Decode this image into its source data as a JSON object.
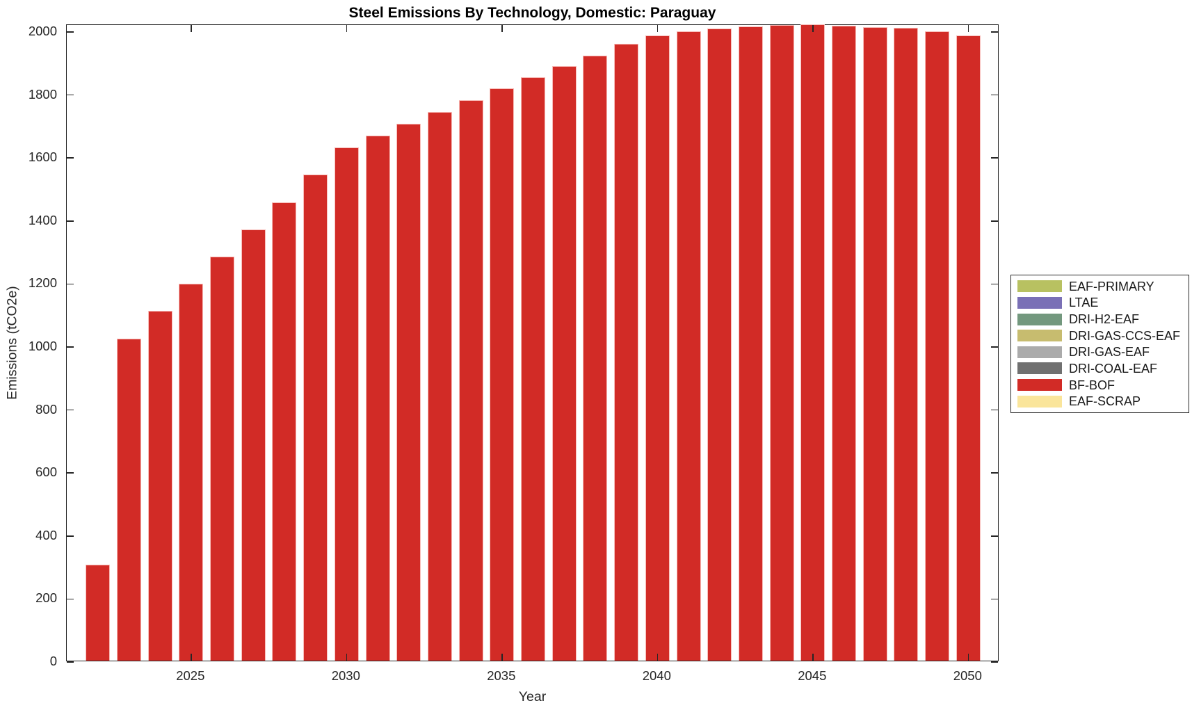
{
  "chart_data": {
    "type": "bar",
    "stacked": true,
    "title": "Steel Emissions By Technology, Domestic: Paraguay",
    "xlabel": "Year",
    "ylabel": "Emissions (tCO2e)",
    "grid": false,
    "xlim": [
      2021,
      2051
    ],
    "ylim": [
      0,
      2022
    ],
    "x_ticks": [
      2025,
      2030,
      2035,
      2040,
      2045,
      2050
    ],
    "y_ticks": [
      0,
      200,
      400,
      600,
      800,
      1000,
      1200,
      1400,
      1600,
      1800,
      2000
    ],
    "categories": [
      2022,
      2023,
      2024,
      2025,
      2026,
      2027,
      2028,
      2029,
      2030,
      2031,
      2032,
      2033,
      2034,
      2035,
      2036,
      2037,
      2038,
      2039,
      2040,
      2041,
      2042,
      2043,
      2044,
      2045,
      2046,
      2047,
      2048,
      2049,
      2050
    ],
    "series": [
      {
        "name": "BF-BOF",
        "color": "#D22B26",
        "values": [
          305,
          1022,
          1111,
          1197,
          1283,
          1369,
          1455,
          1544,
          1630,
          1667,
          1705,
          1742,
          1780,
          1817,
          1853,
          1888,
          1921,
          1957,
          1985,
          1998,
          2006,
          2013,
          2018,
          2019,
          2016,
          2012,
          2008,
          1998,
          1985
        ]
      }
    ],
    "legend": {
      "position": "right-outside",
      "entries": [
        {
          "label": "EAF-PRIMARY",
          "color": "#B8C161"
        },
        {
          "label": "LTAE",
          "color": "#7A70B6"
        },
        {
          "label": "DRI-H2-EAF",
          "color": "#73987E"
        },
        {
          "label": "DRI-GAS-CCS-EAF",
          "color": "#C7BC6F"
        },
        {
          "label": "DRI-GAS-EAF",
          "color": "#ABABAB"
        },
        {
          "label": "DRI-COAL-EAF",
          "color": "#707070"
        },
        {
          "label": "BF-BOF",
          "color": "#D22B26"
        },
        {
          "label": "EAF-SCRAP",
          "color": "#FAE59B"
        }
      ]
    },
    "axis_color": "#262626",
    "background_color": "#FFFFFF"
  }
}
